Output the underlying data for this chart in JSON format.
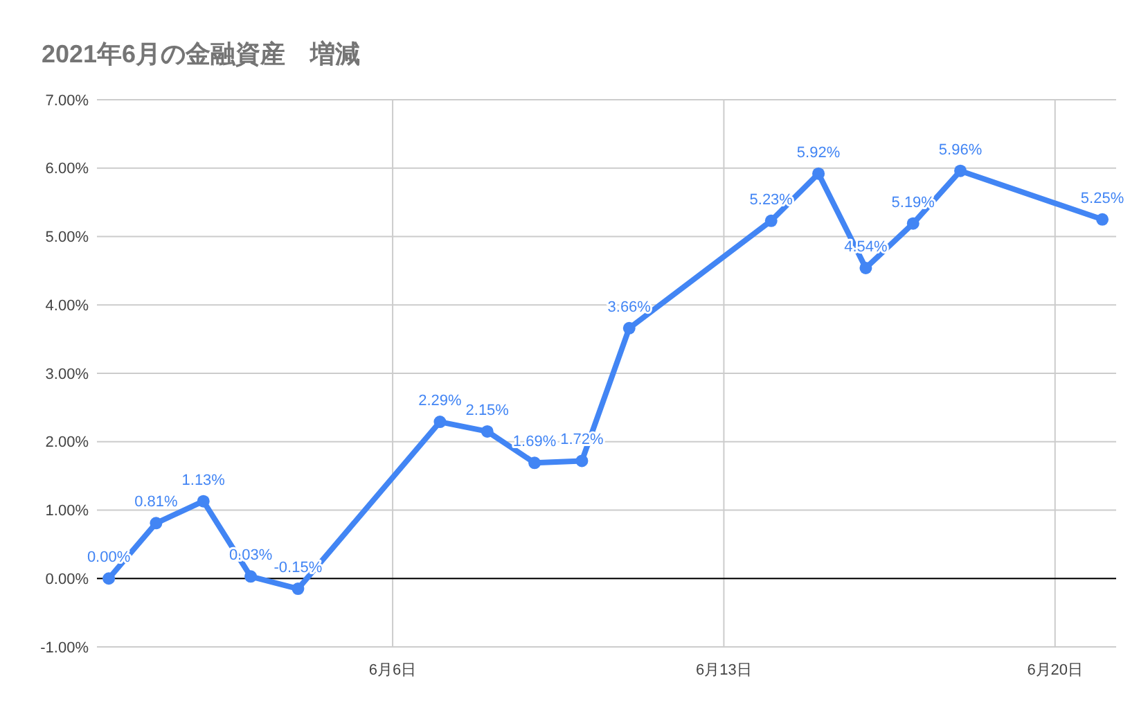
{
  "chart_data": {
    "type": "line",
    "title": "2021年6月の金融資産　増減",
    "x": [
      "2021-05-31",
      "2021-06-01",
      "2021-06-02",
      "2021-06-03",
      "2021-06-04",
      "2021-06-07",
      "2021-06-08",
      "2021-06-09",
      "2021-06-10",
      "2021-06-11",
      "2021-06-14",
      "2021-06-15",
      "2021-06-16",
      "2021-06-17",
      "2021-06-18",
      "2021-06-21"
    ],
    "series": [
      {
        "color": "#4285f4",
        "values": [
          0,
          0.81,
          1.13,
          0.03,
          -0.15,
          2.29,
          2.15,
          1.69,
          1.72,
          3.66,
          5.23,
          5.92,
          4.54,
          5.19,
          5.96,
          5.25
        ],
        "value_labels": [
          "0.00%",
          "0.81%",
          "1.13%",
          "0.03%",
          "-0.15%",
          "2.29%",
          "2.15%",
          "1.69%",
          "1.72%",
          "3.66%",
          "5.23%",
          "5.92%",
          "4.54%",
          "5.19%",
          "5.96%",
          "5.25%"
        ]
      }
    ],
    "xlim": [
      "2021-05-30T18:00",
      "2021-06-21T07:00"
    ],
    "xticks": [
      {
        "value": "2021-06-06",
        "label": "6月6日"
      },
      {
        "value": "2021-06-13",
        "label": "6月13日"
      },
      {
        "value": "2021-06-20",
        "label": "6月20日"
      }
    ],
    "ylim": [
      -1,
      7
    ],
    "yticks": [
      {
        "value": -1,
        "label": "-1.00%"
      },
      {
        "value": 0,
        "label": "0.00%"
      },
      {
        "value": 1,
        "label": "1.00%"
      },
      {
        "value": 2,
        "label": "2.00%"
      },
      {
        "value": 3,
        "label": "3.00%"
      },
      {
        "value": 4,
        "label": "4.00%"
      },
      {
        "value": 5,
        "label": "5.00%"
      },
      {
        "value": 6,
        "label": "6.00%"
      },
      {
        "value": 7,
        "label": "7.00%"
      }
    ],
    "ref_lines": [
      {
        "axis": "y",
        "value": 0,
        "color": "#000000"
      }
    ],
    "grid": true,
    "marker": "circle",
    "line_style": "solid"
  }
}
